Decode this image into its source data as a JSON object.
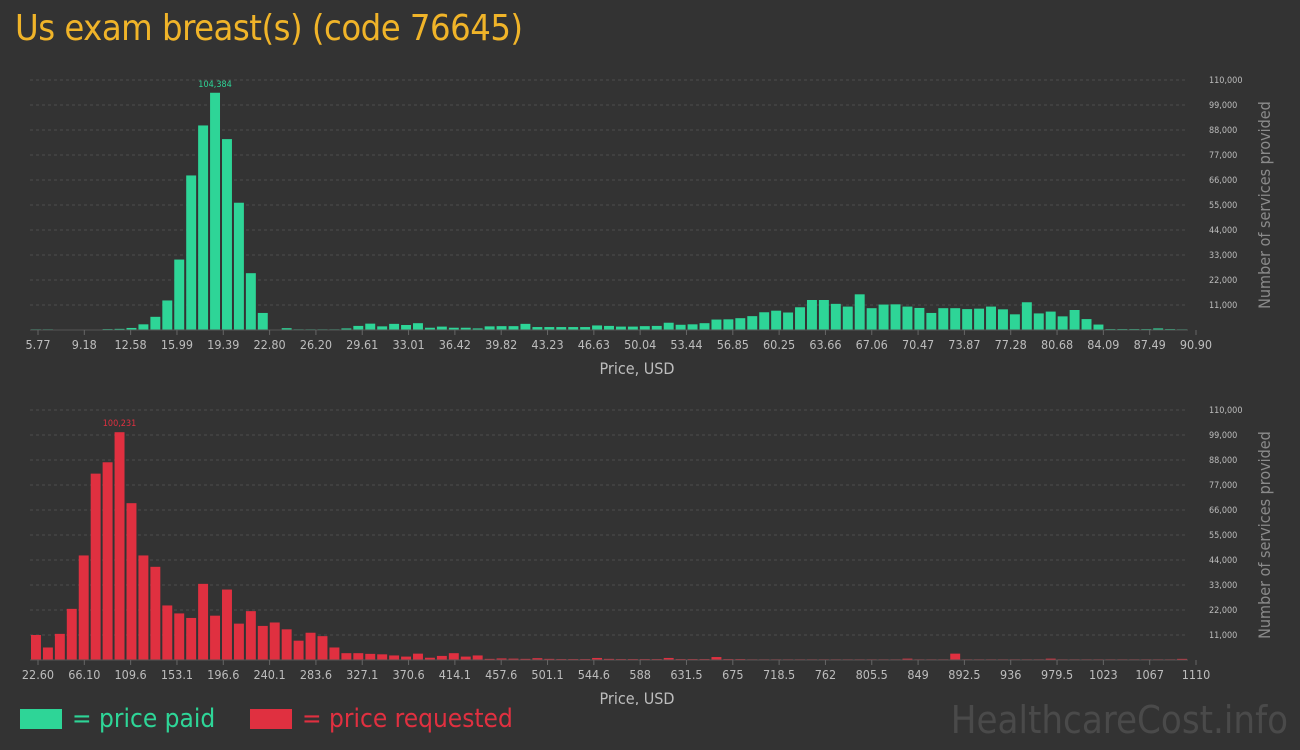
{
  "page": {
    "title": "Us exam breast(s) (code 76645)"
  },
  "legend": {
    "paid_label": "= price paid",
    "requested_label": "= price requested"
  },
  "colors": {
    "paid": "#2ed597",
    "requested": "#e03040",
    "title": "#f0b429",
    "brand": "#4a4a4a"
  },
  "brand": "HealthcareCost.info",
  "chart_data": [
    {
      "type": "bar",
      "name": "price paid",
      "xlabel": "Price, USD",
      "ylabel": "Number of services provided",
      "ylim": [
        0,
        110000
      ],
      "y_ticks": [
        "11,000",
        "22,000",
        "33,000",
        "44,000",
        "55,000",
        "66,000",
        "77,000",
        "88,000",
        "99,000",
        "110,000"
      ],
      "x_ticks": [
        "5.77",
        "9.18",
        "12.58",
        "15.99",
        "19.39",
        "22.80",
        "26.20",
        "29.61",
        "33.01",
        "36.42",
        "39.82",
        "43.23",
        "46.63",
        "50.04",
        "53.44",
        "56.85",
        "60.25",
        "63.66",
        "67.06",
        "70.47",
        "73.87",
        "77.28",
        "80.68",
        "84.09",
        "87.49",
        "90.90"
      ],
      "peak_label": "104,384",
      "grid": true,
      "values": [
        300,
        300,
        0,
        200,
        200,
        200,
        400,
        500,
        900,
        2500,
        5800,
        13000,
        31000,
        68000,
        90000,
        104384,
        84000,
        56000,
        25000,
        7500,
        200,
        800,
        300,
        300,
        300,
        300,
        700,
        1800,
        2800,
        1600,
        2700,
        2200,
        3000,
        1000,
        1500,
        1000,
        1000,
        700,
        1600,
        1700,
        1700,
        2700,
        1300,
        1300,
        1300,
        1300,
        1300,
        2000,
        1800,
        1500,
        1500,
        1700,
        1800,
        3200,
        2300,
        2500,
        3000,
        4600,
        4700,
        5200,
        6100,
        7800,
        8500,
        7700,
        10000,
        13200,
        13200,
        11500,
        10300,
        15700,
        9600,
        11200,
        11300,
        10300,
        9700,
        7500,
        9600,
        9600,
        9200,
        9400,
        10300,
        9100,
        6900,
        12200,
        7300,
        8100,
        6000,
        8800,
        4800,
        2400,
        400,
        400,
        400,
        400,
        700,
        400,
        300
      ]
    },
    {
      "type": "bar",
      "name": "price requested",
      "xlabel": "Price, USD",
      "ylabel": "Number of services provided",
      "ylim": [
        0,
        110000
      ],
      "y_ticks": [
        "11,000",
        "22,000",
        "33,000",
        "44,000",
        "55,000",
        "66,000",
        "77,000",
        "88,000",
        "99,000",
        "110,000"
      ],
      "x_ticks": [
        "22.60",
        "66.10",
        "109.6",
        "153.1",
        "196.6",
        "240.1",
        "283.6",
        "327.1",
        "370.6",
        "414.1",
        "457.6",
        "501.1",
        "544.6",
        "588",
        "631.5",
        "675",
        "718.5",
        "762",
        "805.5",
        "849",
        "892.5",
        "936",
        "979.5",
        "1023",
        "1067",
        "1110"
      ],
      "peak_label": "100,231",
      "grid": true,
      "values": [
        11000,
        5500,
        11500,
        22500,
        46000,
        82000,
        87000,
        100231,
        69000,
        46000,
        41000,
        24000,
        20500,
        18500,
        33500,
        19500,
        31000,
        16000,
        21500,
        15000,
        16500,
        13500,
        8500,
        12000,
        10500,
        5500,
        3000,
        3000,
        2700,
        2500,
        2000,
        1500,
        2800,
        1000,
        1800,
        3000,
        1500,
        2000,
        500,
        700,
        600,
        500,
        800,
        500,
        400,
        400,
        400,
        900,
        500,
        400,
        400,
        400,
        400,
        900,
        400,
        400,
        400,
        1300,
        400,
        400,
        300,
        300,
        300,
        300,
        300,
        300,
        300,
        300,
        300,
        300,
        300,
        300,
        300,
        600,
        300,
        300,
        300,
        2800,
        300,
        300,
        300,
        300,
        300,
        300,
        300,
        600,
        300,
        300,
        300,
        300,
        300,
        300,
        300,
        300,
        300,
        300,
        500
      ]
    }
  ]
}
